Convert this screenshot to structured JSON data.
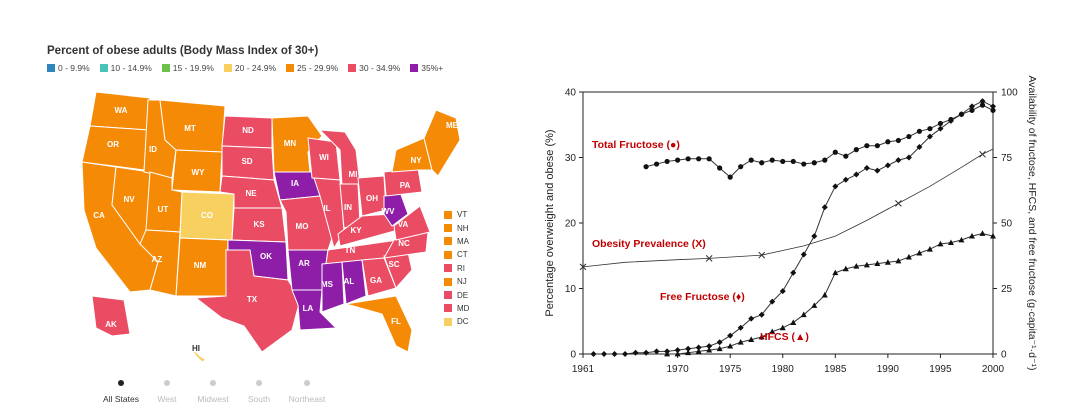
{
  "map": {
    "title": "Percent of obese adults (Body Mass Index of 30+)",
    "legend": [
      {
        "label": "0 - 9.9%",
        "color": "#2e86c1"
      },
      {
        "label": "10 - 14.9%",
        "color": "#4cc3b8"
      },
      {
        "label": "15 - 19.9%",
        "color": "#6cc24a"
      },
      {
        "label": "20 - 24.9%",
        "color": "#f7d060"
      },
      {
        "label": "25 - 29.9%",
        "color": "#f58a07"
      },
      {
        "label": "30 - 34.9%",
        "color": "#ea4c63"
      },
      {
        "label": "35%+",
        "color": "#8e1ea8"
      }
    ],
    "state_labels": [
      "WA",
      "OR",
      "CA",
      "ID",
      "NV",
      "MT",
      "WY",
      "UT",
      "AZ",
      "CO",
      "NM",
      "ND",
      "SD",
      "NE",
      "KS",
      "OK",
      "TX",
      "MN",
      "IA",
      "MO",
      "AR",
      "LA",
      "WI",
      "IL",
      "MS",
      "MI",
      "IN",
      "KY",
      "TN",
      "AL",
      "OH",
      "GA",
      "FL",
      "SC",
      "NC",
      "VA",
      "WV",
      "PA",
      "NY",
      "ME",
      "AK",
      "HI"
    ],
    "small_states": [
      {
        "label": "VT",
        "color": "#f58a07"
      },
      {
        "label": "NH",
        "color": "#f58a07"
      },
      {
        "label": "MA",
        "color": "#f58a07"
      },
      {
        "label": "CT",
        "color": "#f58a07"
      },
      {
        "label": "RI",
        "color": "#ea4c63"
      },
      {
        "label": "NJ",
        "color": "#f58a07"
      },
      {
        "label": "DE",
        "color": "#ea4c63"
      },
      {
        "label": "MD",
        "color": "#ea4c63"
      },
      {
        "label": "DC",
        "color": "#f7d060"
      }
    ],
    "tabs": [
      "All States",
      "West",
      "Midwest",
      "South",
      "Northeast"
    ],
    "active_tab": "All States"
  },
  "chart_data": {
    "type": "line",
    "x_ticks": [
      "1961",
      "1970",
      "1975",
      "1980",
      "1985",
      "1990",
      "1995",
      "2000"
    ],
    "y_left_ticks": [
      "0",
      "10",
      "20",
      "30",
      "40"
    ],
    "y_right_ticks": [
      "0",
      "25",
      "50",
      "75",
      "100"
    ],
    "ylabel": "Percentage overweight and obese (%)",
    "ylabel_right": "Availability of fructose, HFCS, and free fructose (g·capita⁻¹·d⁻¹)",
    "xlim": [
      1961,
      2000
    ],
    "ylim_left": [
      0,
      40
    ],
    "ylim_right": [
      0,
      100
    ],
    "series": [
      {
        "name": "Total Fructose (●)",
        "axis": "right",
        "marker": "circle",
        "x": [
          1967,
          1968,
          1969,
          1970,
          1971,
          1972,
          1973,
          1974,
          1975,
          1976,
          1977,
          1978,
          1979,
          1980,
          1981,
          1982,
          1983,
          1984,
          1985,
          1986,
          1987,
          1988,
          1989,
          1990,
          1991,
          1992,
          1993,
          1994,
          1995,
          1996,
          1997,
          1998,
          1999,
          2000
        ],
        "y": [
          71.5,
          72.5,
          73.5,
          74,
          74.5,
          74.5,
          74.5,
          71,
          67.5,
          71.5,
          74,
          73,
          74,
          73.5,
          73.5,
          72.5,
          73,
          74,
          77,
          75.5,
          78,
          79.5,
          79.5,
          81,
          81.5,
          83,
          85,
          86,
          88,
          89.5,
          91.5,
          93,
          95,
          93
        ]
      },
      {
        "name": "Free Fructose (♦)",
        "axis": "right",
        "marker": "diamond",
        "x": [
          1962,
          1963,
          1964,
          1965,
          1966,
          1967,
          1968,
          1969,
          1970,
          1971,
          1972,
          1973,
          1974,
          1975,
          1976,
          1977,
          1978,
          1979,
          1980,
          1981,
          1982,
          1983,
          1984,
          1985,
          1986,
          1987,
          1988,
          1989,
          1990,
          1991,
          1992,
          1993,
          1994,
          1995,
          1996,
          1997,
          1998,
          1999,
          2000
        ],
        "y": [
          0,
          0,
          0,
          0,
          0.5,
          0.5,
          1,
          1,
          1.5,
          2,
          2.5,
          3,
          4.5,
          7,
          10,
          13.5,
          15,
          20,
          24,
          31,
          38,
          45,
          56,
          64,
          66.5,
          68.5,
          71,
          70,
          72,
          74,
          75,
          79,
          83,
          86,
          89,
          91.5,
          94.5,
          96.5,
          94.5
        ]
      },
      {
        "name": "HFCS (▲)",
        "axis": "right",
        "marker": "triangle",
        "x": [
          1969,
          1970,
          1971,
          1972,
          1973,
          1974,
          1975,
          1976,
          1977,
          1978,
          1979,
          1980,
          1981,
          1982,
          1983,
          1984,
          1985,
          1986,
          1987,
          1988,
          1989,
          1990,
          1991,
          1992,
          1993,
          1994,
          1995,
          1996,
          1997,
          1998,
          1999,
          2000
        ],
        "y": [
          0,
          0,
          0.5,
          1,
          1.5,
          2,
          3,
          4.5,
          5.5,
          6.5,
          8.5,
          10,
          12,
          15,
          18.5,
          22.5,
          31,
          32.5,
          33.5,
          34,
          34.5,
          35,
          35.5,
          37,
          38.5,
          40,
          42,
          42.5,
          43.5,
          45,
          46,
          45
        ]
      },
      {
        "name": "Obesity Prevalence (X)",
        "axis": "left",
        "marker": "x",
        "x": [
          1961,
          1973,
          1978,
          1991,
          1999
        ],
        "y": [
          13.3,
          14.6,
          15.1,
          23,
          30.5
        ],
        "y_curve": [
          [
            1961,
            13.3
          ],
          [
            1965,
            14
          ],
          [
            1970,
            14.4
          ],
          [
            1973,
            14.6
          ],
          [
            1978,
            15.1
          ],
          [
            1982,
            16.5
          ],
          [
            1985,
            18
          ],
          [
            1988,
            20.4
          ],
          [
            1991,
            23
          ],
          [
            1994,
            25.6
          ],
          [
            1997,
            28.5
          ],
          [
            1999,
            30.5
          ],
          [
            2000,
            31.3
          ]
        ]
      }
    ],
    "annotations": [
      "Total Fructose (●)",
      "Obesity Prevalence (X)",
      "Free Fructose (♦)",
      "HFCS (▲)"
    ]
  }
}
